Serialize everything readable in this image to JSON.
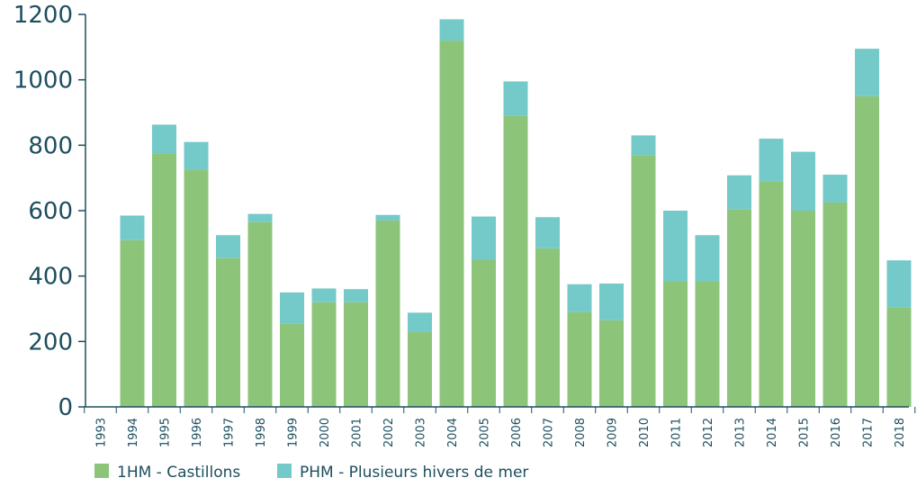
{
  "chart_data": {
    "type": "bar",
    "stacked": true,
    "categories": [
      "1993",
      "1994",
      "1995",
      "1996",
      "1997",
      "1998",
      "1999",
      "2000",
      "2001",
      "2002",
      "2003",
      "2004",
      "2005",
      "2006",
      "2007",
      "2008",
      "2009",
      "2010",
      "2011",
      "2012",
      "2013",
      "2014",
      "2015",
      "2016",
      "2017",
      "2018"
    ],
    "series": [
      {
        "name": "1HM - Castillons",
        "color": "#8cc57a",
        "values": [
          0,
          510,
          775,
          725,
          455,
          565,
          255,
          320,
          320,
          570,
          230,
          1120,
          450,
          890,
          485,
          290,
          265,
          770,
          385,
          385,
          605,
          690,
          600,
          625,
          950,
          305
        ]
      },
      {
        "name": "PHM - Plusieurs hivers de mer",
        "color": "#74c9c9",
        "values": [
          0,
          75,
          88,
          85,
          70,
          25,
          95,
          42,
          40,
          17,
          58,
          65,
          132,
          105,
          95,
          85,
          112,
          60,
          215,
          140,
          103,
          130,
          180,
          85,
          145,
          143
        ]
      }
    ],
    "ylim": [
      0,
      1200
    ],
    "yticks": [
      0,
      200,
      400,
      600,
      800,
      1000,
      1200
    ],
    "axis_color": "#1d4e5f",
    "legend_position": "bottom-left",
    "grid": false
  }
}
